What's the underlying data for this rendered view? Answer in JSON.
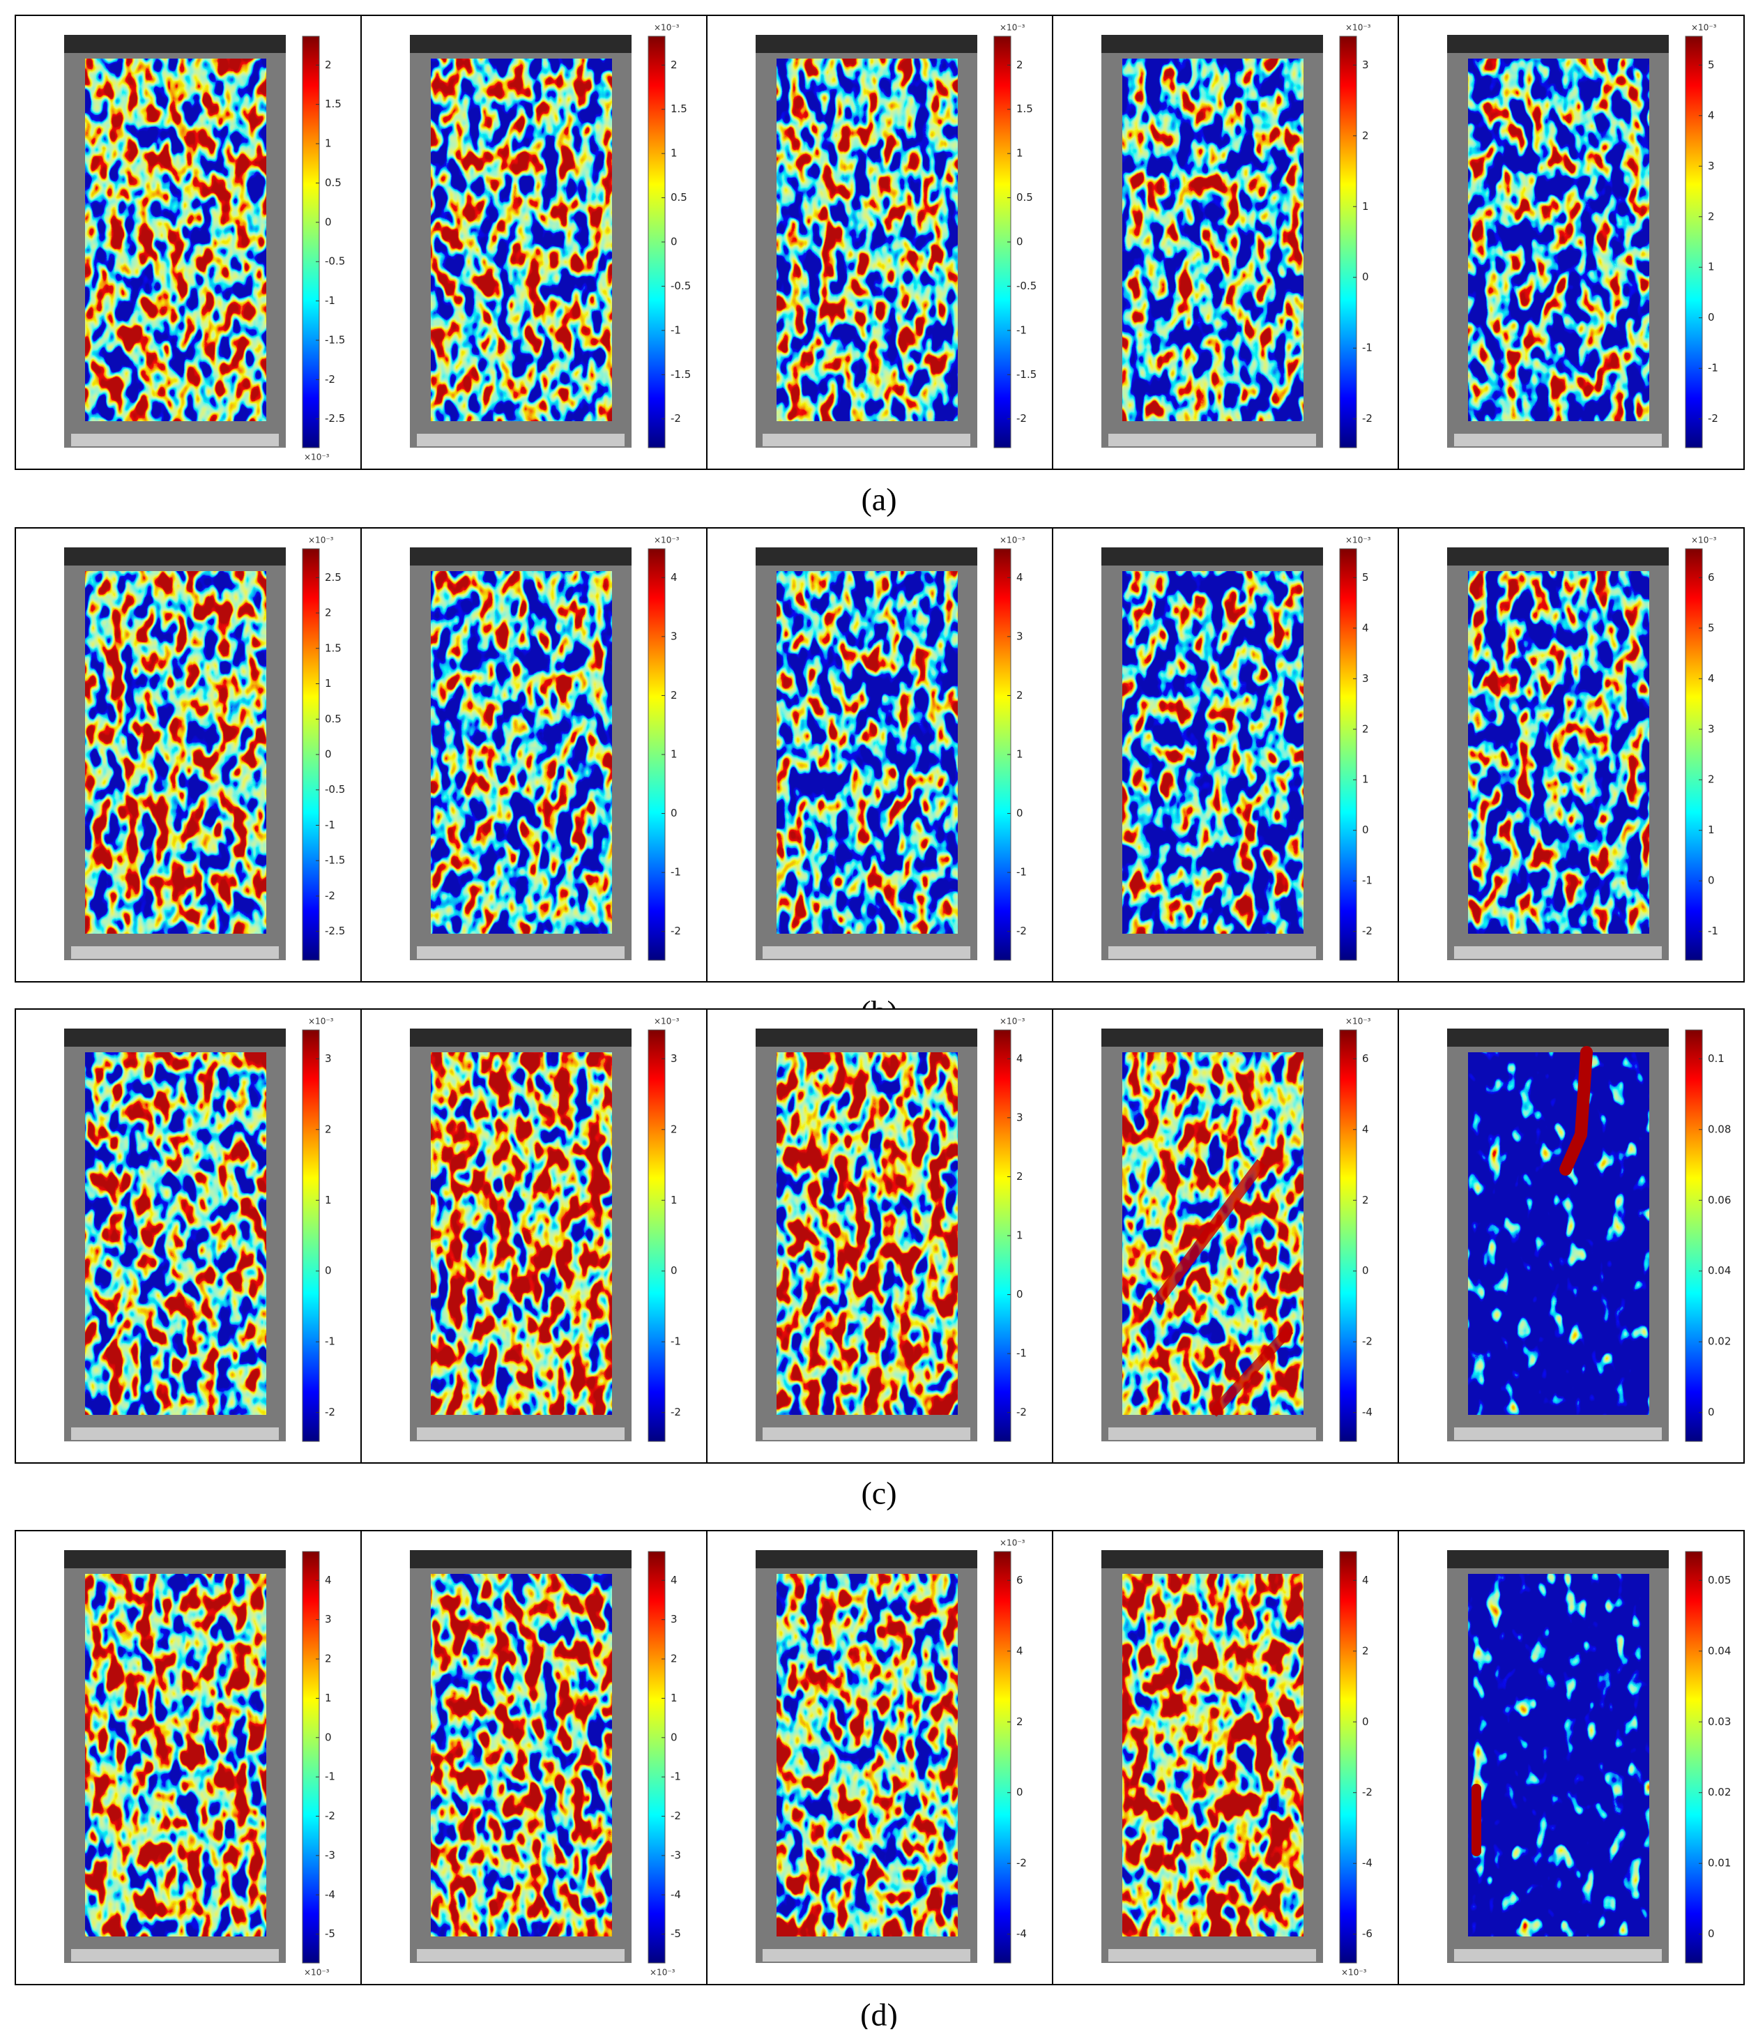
{
  "figure": {
    "rows": [
      {
        "label": "(a)",
        "panels": [
          {
            "colorbar": {
              "ticks": [
                2,
                1.5,
                1,
                0.5,
                0,
                -0.5,
                -1,
                -1.5,
                -2,
                -2.5
              ],
              "bottom_label": "×10⁻³"
            }
          },
          {
            "colorbar": {
              "ticks": [
                2,
                1.5,
                1,
                0.5,
                0,
                -0.5,
                -1,
                -1.5,
                -2
              ],
              "top_label": "×10⁻³"
            }
          },
          {
            "colorbar": {
              "ticks": [
                2,
                1.5,
                1,
                0.5,
                0,
                -0.5,
                -1,
                -1.5,
                -2
              ],
              "top_label": "×10⁻³"
            }
          },
          {
            "colorbar": {
              "ticks": [
                3,
                2,
                1,
                0,
                -1,
                -2
              ],
              "top_label": "×10⁻³"
            }
          },
          {
            "colorbar": {
              "ticks": [
                5,
                4,
                3,
                2,
                1,
                0,
                -1,
                -2
              ],
              "top_label": "×10⁻³"
            }
          }
        ]
      },
      {
        "label": "(b)",
        "panels": [
          {
            "colorbar": {
              "ticks": [
                2.5,
                2,
                1.5,
                1,
                0.5,
                0,
                -0.5,
                -1,
                -1.5,
                -2,
                -2.5
              ],
              "top_label": "×10⁻³"
            }
          },
          {
            "colorbar": {
              "ticks": [
                4,
                3,
                2,
                1,
                0,
                -1,
                -2
              ],
              "top_label": "×10⁻³"
            }
          },
          {
            "colorbar": {
              "ticks": [
                4,
                3,
                2,
                1,
                0,
                -1,
                -2
              ],
              "top_label": "×10⁻³"
            }
          },
          {
            "colorbar": {
              "ticks": [
                5,
                4,
                3,
                2,
                1,
                0,
                -1,
                -2
              ],
              "top_label": "×10⁻³"
            }
          },
          {
            "colorbar": {
              "ticks": [
                6,
                5,
                4,
                3,
                2,
                1,
                0,
                -1
              ],
              "top_label": "×10⁻³"
            }
          }
        ]
      },
      {
        "label": "(c)",
        "panels": [
          {
            "colorbar": {
              "ticks": [
                3,
                2,
                1,
                0,
                -1,
                -2
              ],
              "top_label": "×10⁻³"
            }
          },
          {
            "colorbar": {
              "ticks": [
                3,
                2,
                1,
                0,
                -1,
                -2
              ],
              "top_label": "×10⁻³"
            }
          },
          {
            "colorbar": {
              "ticks": [
                4,
                3,
                2,
                1,
                0,
                -1,
                -2
              ],
              "top_label": "×10⁻³"
            }
          },
          {
            "colorbar": {
              "ticks": [
                6,
                4,
                2,
                0,
                -2,
                -4
              ],
              "top_label": "×10⁻³"
            }
          },
          {
            "colorbar": {
              "ticks": [
                0.1,
                0.08,
                0.06,
                0.04,
                0.02,
                0
              ]
            }
          }
        ]
      },
      {
        "label": "(d)",
        "panels": [
          {
            "colorbar": {
              "ticks": [
                4,
                3,
                2,
                1,
                0,
                -1,
                -2,
                -3,
                -4,
                -5
              ],
              "bottom_label": "×10⁻³"
            }
          },
          {
            "colorbar": {
              "ticks": [
                4,
                3,
                2,
                1,
                0,
                -1,
                -2,
                -3,
                -4,
                -5
              ],
              "bottom_label": "×10⁻³"
            }
          },
          {
            "colorbar": {
              "ticks": [
                6,
                4,
                2,
                0,
                -2,
                -4
              ],
              "top_label": "×10⁻³"
            }
          },
          {
            "colorbar": {
              "ticks": [
                4,
                2,
                0,
                -2,
                -4,
                -6
              ],
              "bottom_label": "×10⁻³"
            }
          },
          {
            "colorbar": {
              "ticks": [
                0.05,
                0.04,
                0.03,
                0.02,
                0.01,
                0
              ]
            }
          }
        ]
      }
    ]
  }
}
